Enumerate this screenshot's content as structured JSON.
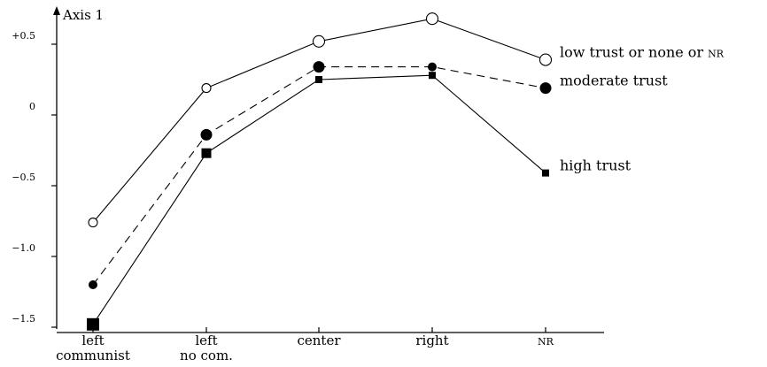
{
  "chart_data": {
    "type": "line",
    "ylabel": "Axis 1",
    "ylim": [
      -1.5,
      0.7
    ],
    "yticks": [
      {
        "value": 0.5,
        "label": "+0.5"
      },
      {
        "value": 0,
        "label": "0"
      },
      {
        "value": -0.5,
        "label": "−0.5"
      },
      {
        "value": -1.0,
        "label": "−1.0"
      },
      {
        "value": -1.5,
        "label": "−1.5"
      }
    ],
    "categories": [
      {
        "line1": "left",
        "line2": "communist"
      },
      {
        "line1": "left",
        "line2": "no com."
      },
      {
        "line1": "center",
        "line2": ""
      },
      {
        "line1": "right",
        "line2": ""
      },
      {
        "line1": "NR",
        "line2": ""
      }
    ],
    "series": [
      {
        "name": "low trust or none or NR",
        "style": "solid",
        "marker": "open-circle",
        "values": [
          -0.76,
          0.19,
          0.52,
          0.68,
          0.39
        ]
      },
      {
        "name": "moderate trust",
        "style": "dashed",
        "marker": "filled-circle",
        "values": [
          -1.2,
          -0.14,
          0.34,
          0.34,
          0.19
        ]
      },
      {
        "name": "high trust",
        "style": "solid",
        "marker": "filled-square",
        "values": [
          -1.48,
          -0.27,
          0.25,
          0.28,
          -0.41
        ]
      }
    ]
  }
}
